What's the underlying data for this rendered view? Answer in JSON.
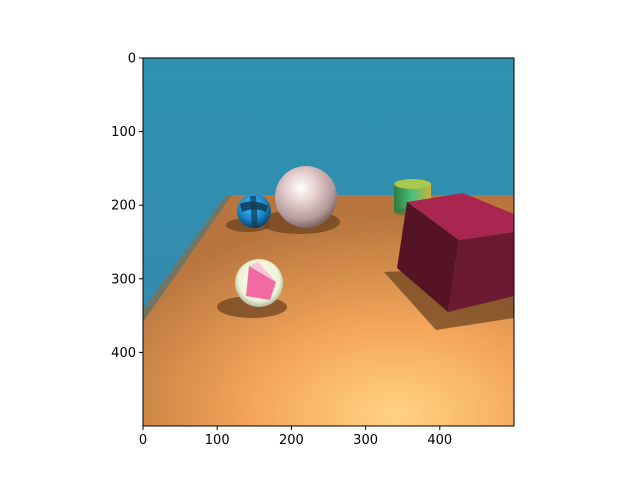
{
  "plot": {
    "type": "image",
    "x_ticks": [
      "0",
      "100",
      "200",
      "300",
      "400"
    ],
    "y_ticks": [
      "0",
      "100",
      "200",
      "300",
      "400"
    ],
    "x_tick_values": [
      0,
      100,
      200,
      300,
      400
    ],
    "y_tick_values": [
      0,
      100,
      200,
      300,
      400
    ],
    "xlim": [
      0,
      500
    ],
    "ylim": [
      500,
      0
    ],
    "grid": false
  },
  "scene": {
    "objects": [
      {
        "name": "large-pink-sphere",
        "color": "#dcbcbc"
      },
      {
        "name": "small-blue-sphere",
        "color": "#1a9ad6"
      },
      {
        "name": "white-pink-striped-sphere",
        "color": "#f05a9a"
      },
      {
        "name": "green-yellow-cylinder",
        "color": "#3aa85a"
      },
      {
        "name": "maroon-cube",
        "color": "#8a1a3a"
      }
    ],
    "colors": {
      "sky_top": "#2f8fae",
      "sky_bottom": "#3a9ab8",
      "floor_near": "#ffd585",
      "floor_far": "#c8823e"
    }
  }
}
